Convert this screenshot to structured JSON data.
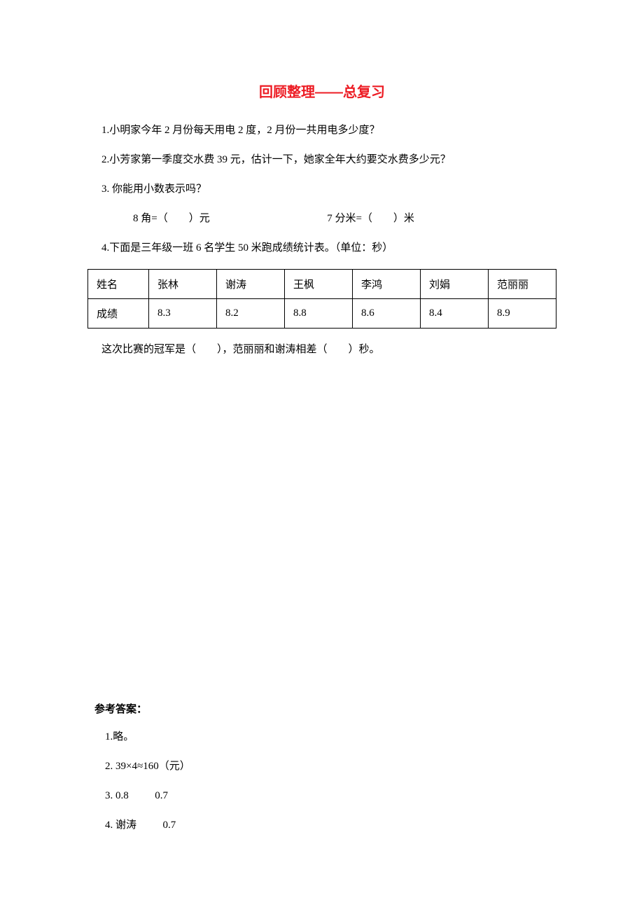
{
  "title": "回顾整理——总复习",
  "questions": {
    "q1": "1.小明家今年 2 月份每天用电 2 度，2 月份一共用电多少度？",
    "q2": "2.小芳家第一季度交水费 39 元，估计一下，她家全年大约要交水费多少元？",
    "q3": "3. 你能用小数表示吗？",
    "q3_line": {
      "part1": "8 角=（　　）元",
      "part2": "7 分米=（　　）米"
    },
    "q4": "4.下面是三年级一班 6 名学生 50 米跑成绩统计表。（单位：秒）",
    "q4_after": "这次比赛的冠军是（　　），范丽丽和谢涛相差（　　）秒。"
  },
  "table": {
    "header_label": "姓名",
    "score_label": "成绩",
    "columns": [
      "张林",
      "谢涛",
      "王枫",
      "李鸿",
      "刘娟",
      "范丽丽"
    ],
    "scores": [
      "8.3",
      "8.2",
      "8.8",
      "8.6",
      "8.4",
      "8.9"
    ]
  },
  "answers": {
    "title": "参考答案：",
    "a1": "1.略。",
    "a2": "2. 39×4≈160（元）",
    "a3_1": "3. 0.8",
    "a3_2": "0.7",
    "a4_1": "4. 谢涛",
    "a4_2": "0.7"
  },
  "colors": {
    "title_color": "#ed1c24",
    "text_color": "#000000",
    "background": "#ffffff",
    "border_color": "#000000"
  }
}
